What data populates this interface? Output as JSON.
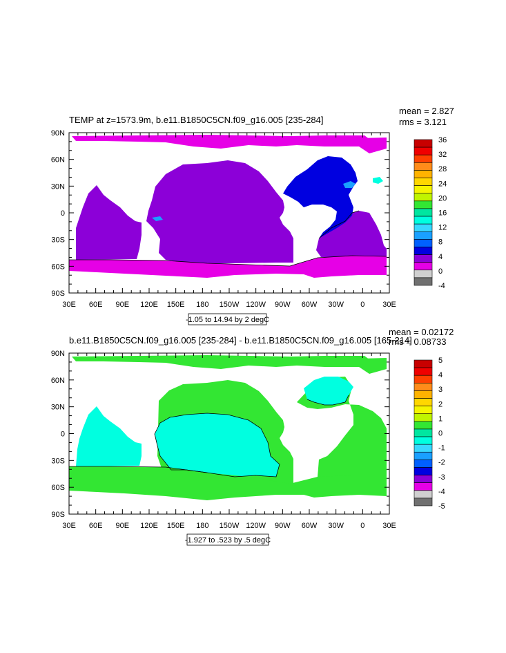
{
  "panels": [
    {
      "title": "TEMP at z=1573.9m, b.e11.B1850C5CN.f09_g16.005 [235-284]",
      "mean": "mean = 2.827",
      "rms": "rms = 3.121",
      "contour_info": "-1.05 to 14.94 by 2 degC",
      "colorbar_labels": [
        "36",
        "32",
        "28",
        "24",
        "20",
        "16",
        "12",
        "8",
        "4",
        "0",
        "-4"
      ],
      "colorbar_colors": [
        "#c80000",
        "#f00000",
        "#ff4000",
        "#ff8c1a",
        "#ffb300",
        "#ffd700",
        "#f5f500",
        "#c0f500",
        "#33e633",
        "#00e6a0",
        "#00ffe0",
        "#38d8ff",
        "#1aa0ff",
        "#0060ff",
        "#0000e0",
        "#8c00d8",
        "#e600e6",
        "#d0d0d0",
        "#707070"
      ]
    },
    {
      "title": "b.e11.B1850C5CN.f09_g16.005 [235-284] - b.e11.B1850C5CN.f09_g16.005 [165-214]",
      "mean": "mean = 0.02172",
      "rms": "rms = 0.08733",
      "contour_info": "-1.927 to .523 by .5 degC",
      "colorbar_labels": [
        "5",
        "4",
        "3",
        "2",
        "1",
        "0",
        "-1",
        "-2",
        "-3",
        "-4",
        "-5"
      ],
      "colorbar_colors": [
        "#c80000",
        "#f00000",
        "#ff4000",
        "#ff8c1a",
        "#ffb300",
        "#ffd700",
        "#f5f500",
        "#c0f500",
        "#33e633",
        "#00e6a0",
        "#00ffe0",
        "#38d8ff",
        "#1aa0ff",
        "#0060ff",
        "#0000e0",
        "#8c00d8",
        "#e600e6",
        "#d0d0d0",
        "#707070"
      ]
    }
  ],
  "x_ticks": [
    "30E",
    "60E",
    "90E",
    "120E",
    "150E",
    "180",
    "150W",
    "120W",
    "90W",
    "60W",
    "30W",
    "0",
    "30E"
  ],
  "y_ticks": [
    "90N",
    "60N",
    "30N",
    "0",
    "30S",
    "60S",
    "90S"
  ],
  "colors": {
    "p1_main": "#8c00d8",
    "p1_south": "#e600e6",
    "p1_atlantic": "#0000e0",
    "p1_patch": "#1aa0ff",
    "p2_main": "#33e633",
    "p2_cyan": "#00ffe0"
  }
}
